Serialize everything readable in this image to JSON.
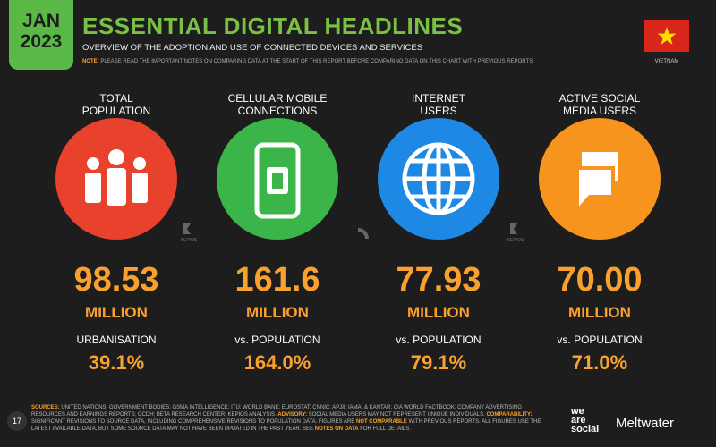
{
  "header": {
    "month": "JAN",
    "year": "2023",
    "title": "ESSENTIAL DIGITAL HEADLINES",
    "subtitle": "OVERVIEW OF THE ADOPTION AND USE OF CONNECTED DEVICES AND SERVICES",
    "note_label": "NOTE:",
    "note": "PLEASE READ THE IMPORTANT NOTES ON COMPARING DATA AT THE START OF THIS REPORT BEFORE COMPARING DATA ON THIS CHART WITH PREVIOUS REPORTS",
    "country": "VIETNAM"
  },
  "metrics": [
    {
      "label": "TOTAL\nPOPULATION",
      "value": "98.53",
      "unit": "MILLION",
      "sublabel": "URBANISATION",
      "subvalue": "39.1%"
    },
    {
      "label": "CELLULAR MOBILE\nCONNECTIONS",
      "value": "161.6",
      "unit": "MILLION",
      "sublabel": "vs. POPULATION",
      "subvalue": "164.0%"
    },
    {
      "label": "INTERNET\nUSERS",
      "value": "77.93",
      "unit": "MILLION",
      "sublabel": "vs. POPULATION",
      "subvalue": "79.1%"
    },
    {
      "label": "ACTIVE SOCIAL\nMEDIA USERS",
      "value": "70.00",
      "unit": "MILLION",
      "sublabel": "vs. POPULATION",
      "subvalue": "71.0%"
    }
  ],
  "logo_small": "KEPIOS",
  "footer": {
    "page": "17",
    "parts": [
      "SOURCES:",
      " UNITED NATIONS; GOVERNMENT BODIES; GSMA INTELLIGENCE; ITU; WORLD BANK; EUROSTAT; CNNIC; APJII; IAMAI & KANTAR; CIA WORLD FACTBOOK; COMPANY ADVERTISING RESOURCES AND EARNINGS REPORTS; OCDH; BETA RESEARCH CENTER; KEPIOS ANALYSIS. ",
      "ADVISORY:",
      " SOCIAL MEDIA USERS MAY NOT REPRESENT UNIQUE INDIVIDUALS. ",
      "COMPARABILITY:",
      " SIGNIFICANT REVISIONS TO SOURCE DATA, INCLUDING COMPREHENSIVE REVISIONS TO POPULATION DATA. FIGURES ARE ",
      "NOT COMPARABLE",
      " WITH PREVIOUS REPORTS. ALL FIGURES USE THE LATEST AVAILABLE DATA, BUT SOME SOURCE DATA MAY NOT HAVE BEEN UPDATED IN THE PAST YEAR. SEE ",
      "NOTES ON DATA",
      " FOR FULL DETAILS."
    ],
    "logo_was": "we\nare\nsocial",
    "logo_mw": "Meltwater"
  }
}
